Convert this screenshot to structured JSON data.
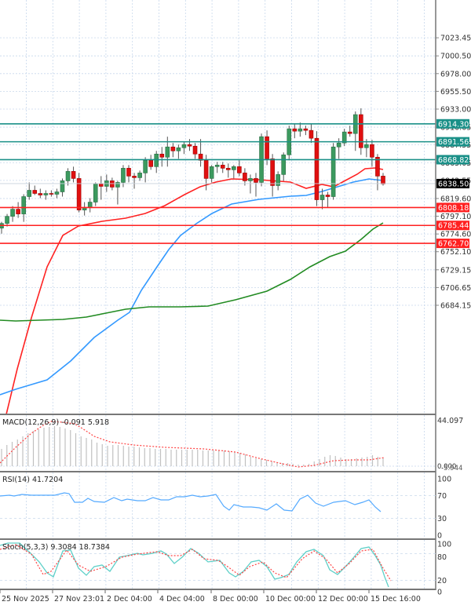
{
  "chart_data": [
    {
      "type": "candlestick",
      "title": "",
      "panel": "main",
      "ylim": [
        6672,
        7028
      ],
      "price_axis_ticks": [
        7023.45,
        7000.5,
        6978.0,
        6955.5,
        6933.0,
        6910.05,
        6887.55,
        6865.05,
        6842.55,
        6819.6,
        6797.1,
        6774.6,
        6752.1,
        6729.15,
        6706.65,
        6684.15
      ],
      "current_price": 6838.5,
      "horizontal_levels": [
        {
          "value": 6914.3,
          "label": "6914.30",
          "color": "#1a9088",
          "kind": "resistance"
        },
        {
          "value": 6891.56,
          "label": "6891.56",
          "color": "#1a9088",
          "kind": "resistance"
        },
        {
          "value": 6868.82,
          "label": "6868.82",
          "color": "#1a9088",
          "kind": "resistance"
        },
        {
          "value": 6808.18,
          "label": "6808.18",
          "color": "#ff2020",
          "kind": "support"
        },
        {
          "value": 6785.44,
          "label": "6785.44",
          "color": "#ff2020",
          "kind": "support"
        },
        {
          "value": 6762.7,
          "label": "6762.70",
          "color": "#ff2020",
          "kind": "support"
        }
      ],
      "moving_averages": [
        {
          "name": "MA fast",
          "color": "#ff2222"
        },
        {
          "name": "MA medium",
          "color": "#3399ff"
        },
        {
          "name": "MA slow",
          "color": "#228b22"
        }
      ],
      "x_labels": [
        "25 Nov 2025",
        "27 Nov 23:01",
        "2 Dec 04:00",
        "4 Dec 04:00",
        "8 Dec 00:00",
        "10 Dec 00:00",
        "12 Dec 00:00",
        "15 Dec 16:00"
      ],
      "candles": [
        [
          6782,
          6790,
          6775,
          6788
        ],
        [
          6788,
          6800,
          6784,
          6797
        ],
        [
          6797,
          6810,
          6790,
          6806
        ],
        [
          6806,
          6815,
          6795,
          6800
        ],
        [
          6800,
          6825,
          6790,
          6822
        ],
        [
          6822,
          6840,
          6818,
          6830
        ],
        [
          6830,
          6836,
          6824,
          6826
        ],
        [
          6826,
          6832,
          6820,
          6824
        ],
        [
          6824,
          6830,
          6818,
          6826
        ],
        [
          6826,
          6830,
          6822,
          6825
        ],
        [
          6825,
          6832,
          6820,
          6828
        ],
        [
          6828,
          6845,
          6822,
          6842
        ],
        [
          6842,
          6858,
          6836,
          6854
        ],
        [
          6854,
          6860,
          6840,
          6845
        ],
        [
          6845,
          6852,
          6802,
          6805
        ],
        [
          6805,
          6815,
          6798,
          6808
        ],
        [
          6808,
          6820,
          6802,
          6815
        ],
        [
          6815,
          6840,
          6810,
          6838
        ],
        [
          6838,
          6848,
          6818,
          6835
        ],
        [
          6835,
          6850,
          6828,
          6842
        ],
        [
          6842,
          6846,
          6830,
          6834
        ],
        [
          6834,
          6842,
          6812,
          6840
        ],
        [
          6840,
          6862,
          6834,
          6858
        ],
        [
          6858,
          6862,
          6840,
          6848
        ],
        [
          6848,
          6852,
          6832,
          6846
        ],
        [
          6846,
          6855,
          6842,
          6852
        ],
        [
          6852,
          6872,
          6840,
          6868
        ],
        [
          6868,
          6875,
          6856,
          6860
        ],
        [
          6860,
          6880,
          6852,
          6876
        ],
        [
          6876,
          6885,
          6860,
          6872
        ],
        [
          6872,
          6898,
          6860,
          6885
        ],
        [
          6885,
          6890,
          6872,
          6880
        ],
        [
          6880,
          6888,
          6870,
          6884
        ],
        [
          6884,
          6892,
          6876,
          6888
        ],
        [
          6888,
          6895,
          6880,
          6886
        ],
        [
          6886,
          6890,
          6870,
          6876
        ],
        [
          6876,
          6895,
          6860,
          6868
        ],
        [
          6868,
          6875,
          6830,
          6845
        ],
        [
          6845,
          6862,
          6840,
          6860
        ],
        [
          6860,
          6866,
          6852,
          6862
        ],
        [
          6862,
          6866,
          6852,
          6858
        ],
        [
          6858,
          6864,
          6846,
          6856
        ],
        [
          6856,
          6862,
          6845,
          6860
        ],
        [
          6860,
          6868,
          6848,
          6852
        ],
        [
          6852,
          6858,
          6836,
          6842
        ],
        [
          6842,
          6850,
          6826,
          6845
        ],
        [
          6845,
          6852,
          6822,
          6840
        ],
        [
          6840,
          6902,
          6835,
          6898
        ],
        [
          6898,
          6906,
          6862,
          6870
        ],
        [
          6870,
          6876,
          6822,
          6836
        ],
        [
          6836,
          6854,
          6830,
          6850
        ],
        [
          6850,
          6878,
          6842,
          6875
        ],
        [
          6875,
          6912,
          6868,
          6908
        ],
        [
          6908,
          6914,
          6896,
          6905
        ],
        [
          6905,
          6916,
          6898,
          6908
        ],
        [
          6908,
          6912,
          6900,
          6906
        ],
        [
          6906,
          6914,
          6890,
          6896
        ],
        [
          6896,
          6905,
          6810,
          6818
        ],
        [
          6818,
          6832,
          6806,
          6824
        ],
        [
          6824,
          6828,
          6808,
          6822
        ],
        [
          6822,
          6890,
          6818,
          6885
        ],
        [
          6885,
          6896,
          6870,
          6890
        ],
        [
          6890,
          6908,
          6886,
          6904
        ],
        [
          6904,
          6912,
          6898,
          6902
        ],
        [
          6902,
          6930,
          6880,
          6926
        ],
        [
          6926,
          6934,
          6875,
          6884
        ],
        [
          6884,
          6895,
          6872,
          6888
        ],
        [
          6888,
          6894,
          6860,
          6872
        ],
        [
          6872,
          6876,
          6830,
          6848
        ],
        [
          6848,
          6852,
          6836,
          6838
        ]
      ]
    },
    {
      "type": "bar",
      "panel": "macd",
      "title": "MACD(12,26,9) -0.091 5.918",
      "label": "MACD(12,26,9)",
      "values_shown": [
        -0.091,
        5.918
      ],
      "axis_ticks": [
        "44.097",
        "0.000",
        "-5.944"
      ],
      "ylim": [
        -6,
        44.097
      ],
      "signal_color": "#ff4444",
      "hist_color": "#c0c0c0"
    },
    {
      "type": "line",
      "panel": "rsi",
      "title": "RSI(14) 41.7204",
      "label": "RSI(14)",
      "value_shown": 41.7204,
      "axis_ticks": [
        100,
        70,
        30,
        0
      ],
      "levels": [
        70,
        30
      ],
      "ylim": [
        0,
        100
      ],
      "color": "#55aaff"
    },
    {
      "type": "line",
      "panel": "stoch",
      "title": "Stoch(5,3,3) 9.3084 18.7384",
      "label": "Stoch(5,3,3)",
      "values_shown": [
        9.3084,
        18.7384
      ],
      "axis_ticks": [
        100,
        80,
        20,
        0
      ],
      "levels": [
        80,
        20
      ],
      "ylim": [
        0,
        100
      ],
      "main_color": "#5fd0c8",
      "signal_color": "#ff4444"
    }
  ],
  "labels": {
    "macd_title": "MACD(12,26,9) -0.091 5.918",
    "rsi_title": "RSI(14) 41.7204",
    "stoch_title": "Stoch(5,3,3) 9.3084 18.7384",
    "current_price": "6838.50"
  }
}
